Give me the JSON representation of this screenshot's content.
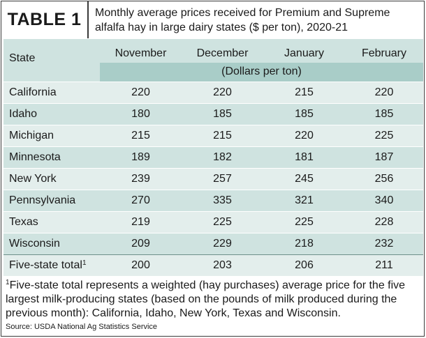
{
  "header": {
    "label": "TABLE 1",
    "title": "Monthly average prices received for Premium and Supreme alfalfa hay in large dairy states ($ per ton), 2020-21"
  },
  "table": {
    "state_header": "State",
    "months": [
      "November",
      "December",
      "January",
      "February"
    ],
    "unit": "(Dollars per ton)",
    "rows": [
      {
        "state": "California",
        "values": [
          "220",
          "220",
          "215",
          "220"
        ]
      },
      {
        "state": "Idaho",
        "values": [
          "180",
          "185",
          "185",
          "185"
        ]
      },
      {
        "state": "Michigan",
        "values": [
          "215",
          "215",
          "220",
          "225"
        ]
      },
      {
        "state": "Minnesota",
        "values": [
          "189",
          "182",
          "181",
          "187"
        ]
      },
      {
        "state": "New York",
        "values": [
          "239",
          "257",
          "245",
          "256"
        ]
      },
      {
        "state": "Pennsylvania",
        "values": [
          "270",
          "335",
          "321",
          "340"
        ]
      },
      {
        "state": "Texas",
        "values": [
          "219",
          "225",
          "225",
          "228"
        ]
      },
      {
        "state": "Wisconsin",
        "values": [
          "209",
          "229",
          "218",
          "232"
        ]
      }
    ],
    "total": {
      "state": "Five-state total",
      "mark": "1",
      "values": [
        "200",
        "203",
        "206",
        "211"
      ]
    }
  },
  "footnote": {
    "mark": "1",
    "text": "Five-state total represents a weighted (hay purchases) average price for the five largest milk-producing states (based on the pounds of milk produced during the previous month): California, Idaho, New York, Texas and Wisconsin."
  },
  "source": "Source: USDA National Ag Statistics Service",
  "colors": {
    "header_teal": "#cfe3e0",
    "unit_teal": "#a9cdc8",
    "row_light": "#e3eeec",
    "row_dark": "#cfe3e0"
  }
}
